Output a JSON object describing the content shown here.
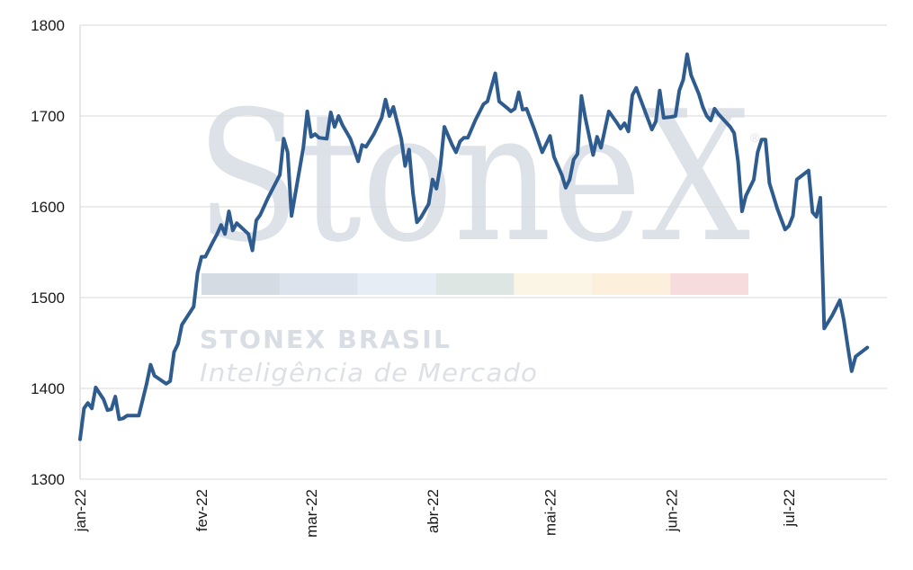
{
  "watermark": {
    "logo": "StoneX",
    "registered": "®",
    "brand": "STONEX BRASIL",
    "tagline": "Inteligência de Mercado",
    "band_colors": [
      "#d5dbe3",
      "#dde3ec",
      "#e6edf4",
      "#dde6e2",
      "#faf5e4",
      "#fcefdc",
      "#f6dcdc"
    ]
  },
  "chart_data": {
    "type": "line",
    "title": "",
    "xlabel": "",
    "ylabel": "",
    "ylim": [
      1300,
      1800
    ],
    "yticks": [
      1300,
      1400,
      1500,
      1600,
      1700,
      1800
    ],
    "xlim": [
      "2022-01-01",
      "2022-07-26"
    ],
    "xticks": [
      {
        "date": "2022-01-01",
        "label": "jan-22"
      },
      {
        "date": "2022-02-01",
        "label": "fev-22"
      },
      {
        "date": "2022-03-01",
        "label": "mar-22"
      },
      {
        "date": "2022-04-01",
        "label": "abr-22"
      },
      {
        "date": "2022-05-01",
        "label": "mai-22"
      },
      {
        "date": "2022-06-01",
        "label": "jun-22"
      },
      {
        "date": "2022-07-01",
        "label": "jul-22"
      }
    ],
    "grid": "horizontal",
    "line_color": "#2f5c8f",
    "series": [
      {
        "values": [
          [
            "2022-01-01",
            1344
          ],
          [
            "2022-01-02",
            1378
          ],
          [
            "2022-01-03",
            1384
          ],
          [
            "2022-01-04",
            1378
          ],
          [
            "2022-01-05",
            1401
          ],
          [
            "2022-01-07",
            1388
          ],
          [
            "2022-01-08",
            1376
          ],
          [
            "2022-01-09",
            1377
          ],
          [
            "2022-01-10",
            1391
          ],
          [
            "2022-01-11",
            1366
          ],
          [
            "2022-01-12",
            1367
          ],
          [
            "2022-01-13",
            1370
          ],
          [
            "2022-01-15",
            1370
          ],
          [
            "2022-01-16",
            1370
          ],
          [
            "2022-01-18",
            1405
          ],
          [
            "2022-01-19",
            1426
          ],
          [
            "2022-01-20",
            1414
          ],
          [
            "2022-01-22",
            1408
          ],
          [
            "2022-01-23",
            1405
          ],
          [
            "2022-01-24",
            1408
          ],
          [
            "2022-01-25",
            1440
          ],
          [
            "2022-01-26",
            1449
          ],
          [
            "2022-01-27",
            1470
          ],
          [
            "2022-01-30",
            1490
          ],
          [
            "2022-01-31",
            1527
          ],
          [
            "2022-02-01",
            1545
          ],
          [
            "2022-02-02",
            1545
          ],
          [
            "2022-02-04",
            1562
          ],
          [
            "2022-02-05",
            1570
          ],
          [
            "2022-02-06",
            1580
          ],
          [
            "2022-02-07",
            1570
          ],
          [
            "2022-02-08",
            1595
          ],
          [
            "2022-02-09",
            1574
          ],
          [
            "2022-02-10",
            1582
          ],
          [
            "2022-02-12",
            1574
          ],
          [
            "2022-02-13",
            1570
          ],
          [
            "2022-02-14",
            1552
          ],
          [
            "2022-02-15",
            1585
          ],
          [
            "2022-02-16",
            1591
          ],
          [
            "2022-02-18",
            1610
          ],
          [
            "2022-02-21",
            1635
          ],
          [
            "2022-02-22",
            1675
          ],
          [
            "2022-02-23",
            1660
          ],
          [
            "2022-02-24",
            1590
          ],
          [
            "2022-02-26",
            1640
          ],
          [
            "2022-02-27",
            1665
          ],
          [
            "2022-02-28",
            1705
          ],
          [
            "2022-03-01",
            1677
          ],
          [
            "2022-03-02",
            1680
          ],
          [
            "2022-03-03",
            1676
          ],
          [
            "2022-03-05",
            1675
          ],
          [
            "2022-03-06",
            1704
          ],
          [
            "2022-03-07",
            1688
          ],
          [
            "2022-03-08",
            1700
          ],
          [
            "2022-03-09",
            1690
          ],
          [
            "2022-03-11",
            1675
          ],
          [
            "2022-03-12",
            1663
          ],
          [
            "2022-03-13",
            1650
          ],
          [
            "2022-03-14",
            1668
          ],
          [
            "2022-03-15",
            1666
          ],
          [
            "2022-03-17",
            1680
          ],
          [
            "2022-03-19",
            1698
          ],
          [
            "2022-03-20",
            1718
          ],
          [
            "2022-03-21",
            1700
          ],
          [
            "2022-03-22",
            1710
          ],
          [
            "2022-03-24",
            1675
          ],
          [
            "2022-03-25",
            1645
          ],
          [
            "2022-03-26",
            1663
          ],
          [
            "2022-03-27",
            1615
          ],
          [
            "2022-03-28",
            1583
          ],
          [
            "2022-03-29",
            1588
          ],
          [
            "2022-03-31",
            1603
          ],
          [
            "2022-04-01",
            1630
          ],
          [
            "2022-04-02",
            1620
          ],
          [
            "2022-04-03",
            1645
          ],
          [
            "2022-04-04",
            1688
          ],
          [
            "2022-04-06",
            1668
          ],
          [
            "2022-04-07",
            1660
          ],
          [
            "2022-04-08",
            1672
          ],
          [
            "2022-04-09",
            1676
          ],
          [
            "2022-04-10",
            1676
          ],
          [
            "2022-04-12",
            1696
          ],
          [
            "2022-04-14",
            1713
          ],
          [
            "2022-04-15",
            1716
          ],
          [
            "2022-04-17",
            1747
          ],
          [
            "2022-04-18",
            1716
          ],
          [
            "2022-04-20",
            1709
          ],
          [
            "2022-04-21",
            1705
          ],
          [
            "2022-04-22",
            1708
          ],
          [
            "2022-04-23",
            1726
          ],
          [
            "2022-04-24",
            1707
          ],
          [
            "2022-04-25",
            1708
          ],
          [
            "2022-04-27",
            1685
          ],
          [
            "2022-04-29",
            1660
          ],
          [
            "2022-05-01",
            1678
          ],
          [
            "2022-05-02",
            1655
          ],
          [
            "2022-05-04",
            1635
          ],
          [
            "2022-05-05",
            1621
          ],
          [
            "2022-05-06",
            1630
          ],
          [
            "2022-05-07",
            1652
          ],
          [
            "2022-05-08",
            1658
          ],
          [
            "2022-05-09",
            1722
          ],
          [
            "2022-05-10",
            1698
          ],
          [
            "2022-05-12",
            1657
          ],
          [
            "2022-05-13",
            1677
          ],
          [
            "2022-05-14",
            1665
          ],
          [
            "2022-05-15",
            1685
          ],
          [
            "2022-05-16",
            1705
          ],
          [
            "2022-05-18",
            1693
          ],
          [
            "2022-05-19",
            1686
          ],
          [
            "2022-05-20",
            1692
          ],
          [
            "2022-05-21",
            1683
          ],
          [
            "2022-05-22",
            1723
          ],
          [
            "2022-05-23",
            1731
          ],
          [
            "2022-05-25",
            1708
          ],
          [
            "2022-05-27",
            1685
          ],
          [
            "2022-05-28",
            1694
          ],
          [
            "2022-05-29",
            1728
          ],
          [
            "2022-05-30",
            1698
          ],
          [
            "2022-06-01",
            1699
          ],
          [
            "2022-06-02",
            1700
          ],
          [
            "2022-06-03",
            1728
          ],
          [
            "2022-06-04",
            1740
          ],
          [
            "2022-06-05",
            1768
          ],
          [
            "2022-06-06",
            1745
          ],
          [
            "2022-06-08",
            1724
          ],
          [
            "2022-06-09",
            1710
          ],
          [
            "2022-06-10",
            1700
          ],
          [
            "2022-06-11",
            1695
          ],
          [
            "2022-06-12",
            1708
          ],
          [
            "2022-06-13",
            1702
          ],
          [
            "2022-06-16",
            1688
          ],
          [
            "2022-06-17",
            1681
          ],
          [
            "2022-06-18",
            1650
          ],
          [
            "2022-06-19",
            1595
          ],
          [
            "2022-06-20",
            1612
          ],
          [
            "2022-06-22",
            1630
          ],
          [
            "2022-06-23",
            1660
          ],
          [
            "2022-06-24",
            1674
          ],
          [
            "2022-06-25",
            1674
          ],
          [
            "2022-06-26",
            1626
          ],
          [
            "2022-06-28",
            1598
          ],
          [
            "2022-06-30",
            1575
          ],
          [
            "2022-07-01",
            1579
          ],
          [
            "2022-07-02",
            1590
          ],
          [
            "2022-07-03",
            1630
          ],
          [
            "2022-07-06",
            1640
          ],
          [
            "2022-07-07",
            1594
          ],
          [
            "2022-07-08",
            1589
          ],
          [
            "2022-07-09",
            1610
          ],
          [
            "2022-07-10",
            1466
          ],
          [
            "2022-07-12",
            1480
          ],
          [
            "2022-07-14",
            1497
          ],
          [
            "2022-07-15",
            1475
          ],
          [
            "2022-07-16",
            1446
          ],
          [
            "2022-07-17",
            1419
          ],
          [
            "2022-07-18",
            1435
          ],
          [
            "2022-07-21",
            1445
          ]
        ]
      }
    ]
  }
}
